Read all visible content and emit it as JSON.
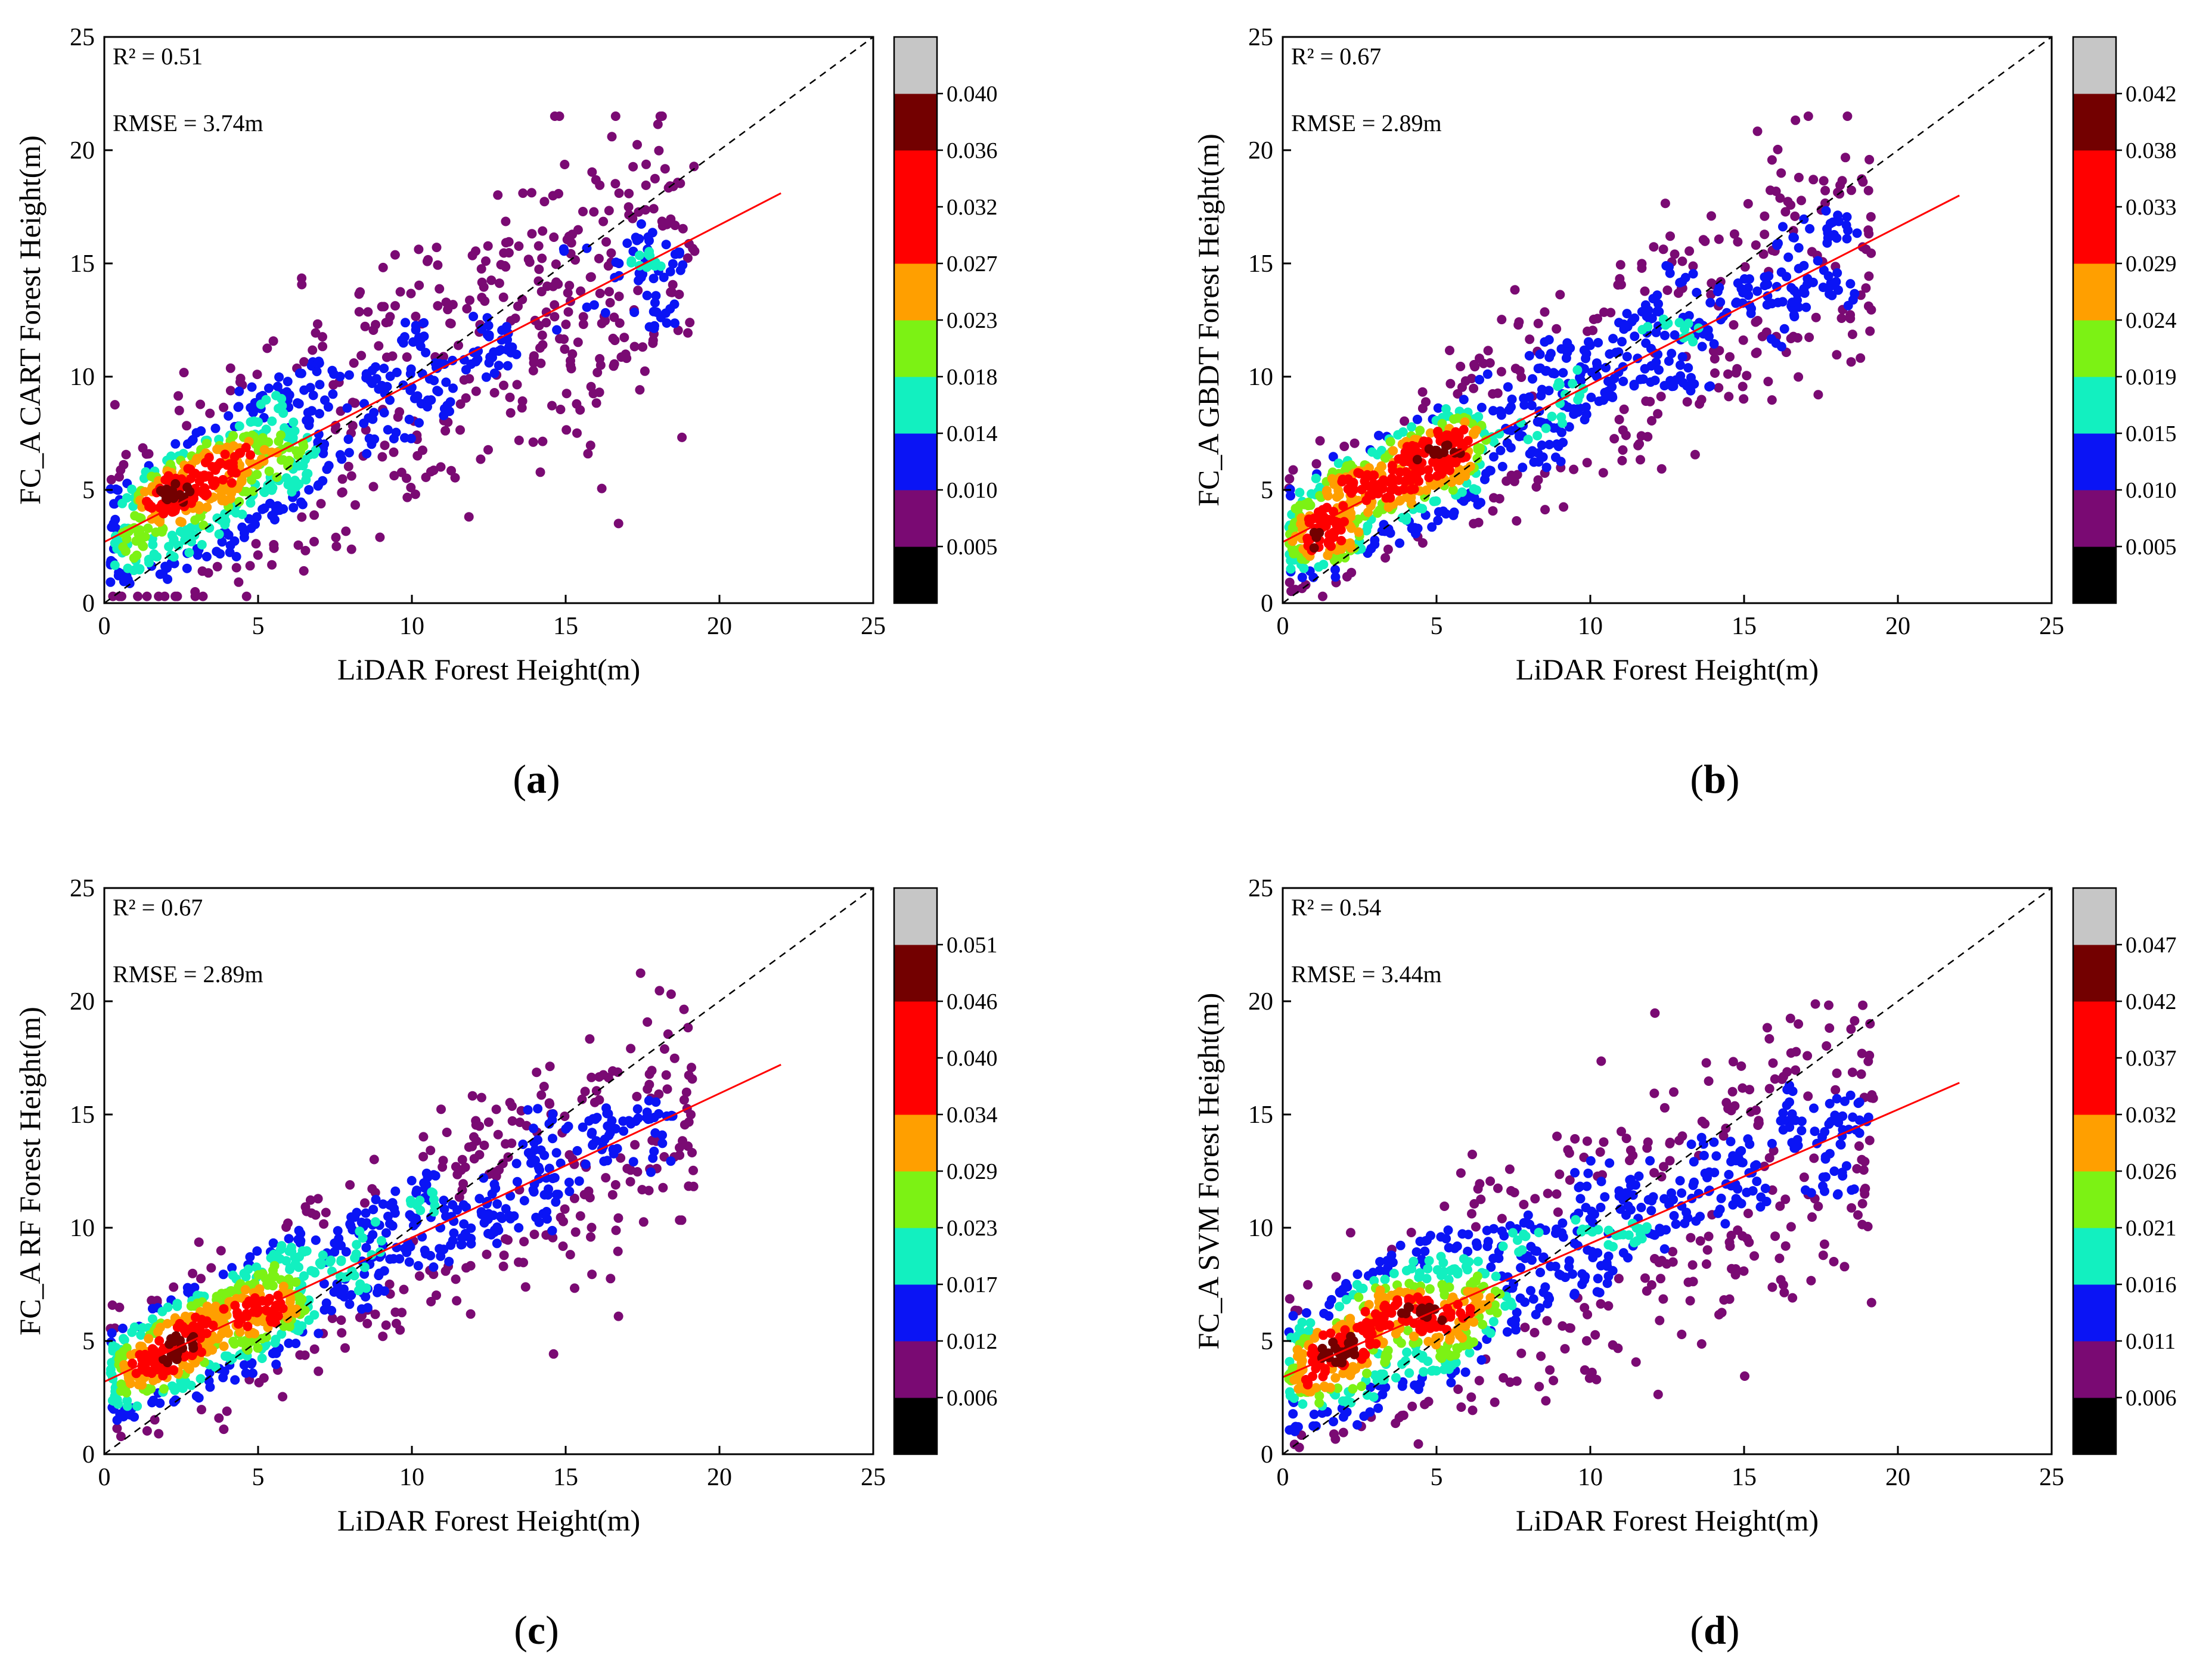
{
  "colors": {
    "bins": [
      "#000000",
      "#7a0a73",
      "#0a14f5",
      "#12f0c0",
      "#7cf214",
      "#ff9f00",
      "#ff0000",
      "#730000",
      "#c6c6c6"
    ],
    "fit_line": "#ff0000",
    "identity_line": "#000000"
  },
  "chart_data": [
    {
      "id": "a",
      "type": "scatter",
      "letter": "a",
      "xlabel": "LiDAR Forest Height(m)",
      "ylabel": "FC_A CART Forest Height(m)",
      "xlim": [
        0,
        25
      ],
      "ylim": [
        0,
        25
      ],
      "xticks": [
        "0",
        "5",
        "10",
        "15",
        "20",
        "25"
      ],
      "yticks": [
        "0",
        "5",
        "10",
        "15",
        "20",
        "25"
      ],
      "r2_text": "R² = 0.51",
      "rmse_text": "RMSE = 3.74m",
      "colorbar_labels": [
        "0.005",
        "0.010",
        "0.014",
        "0.018",
        "0.023",
        "0.027",
        "0.032",
        "0.036",
        "0.040"
      ],
      "fit_line": {
        "x": [
          0,
          22
        ],
        "y": [
          2.7,
          18.1
        ]
      },
      "identity_line": {
        "x": [
          0,
          25
        ],
        "y": [
          0,
          25
        ]
      },
      "points_summary": {
        "n": 1100,
        "seed": 11,
        "intercept": 2.7,
        "slope": 0.7,
        "noise_sd": 3.0,
        "x_skew": 1.25
      }
    },
    {
      "id": "b",
      "type": "scatter",
      "letter": "b",
      "xlabel": "LiDAR Forest Height(m)",
      "ylabel": "FC_A GBDT Forest Height(m)",
      "xlim": [
        0,
        25
      ],
      "ylim": [
        0,
        25
      ],
      "xticks": [
        "0",
        "5",
        "10",
        "15",
        "20",
        "25"
      ],
      "yticks": [
        "0",
        "5",
        "10",
        "15",
        "20",
        "25"
      ],
      "r2_text": "R² = 0.67",
      "rmse_text": "RMSE = 2.89m",
      "colorbar_labels": [
        "0.005",
        "0.010",
        "0.015",
        "0.019",
        "0.024",
        "0.029",
        "0.033",
        "0.038",
        "0.042"
      ],
      "fit_line": {
        "x": [
          0,
          22
        ],
        "y": [
          2.7,
          18.0
        ]
      },
      "identity_line": {
        "x": [
          0,
          25
        ],
        "y": [
          0,
          25
        ]
      },
      "points_summary": {
        "n": 1100,
        "seed": 23,
        "intercept": 2.7,
        "slope": 0.7,
        "noise_sd": 2.2,
        "x_skew": 1.25
      }
    },
    {
      "id": "c",
      "type": "scatter",
      "letter": "c",
      "xlabel": "LiDAR Forest Height(m)",
      "ylabel": "FC_A RF Forest Height(m)",
      "xlim": [
        0,
        25
      ],
      "ylim": [
        0,
        25
      ],
      "xticks": [
        "0",
        "5",
        "10",
        "15",
        "20",
        "25"
      ],
      "yticks": [
        "0",
        "5",
        "10",
        "15",
        "20",
        "25"
      ],
      "r2_text": "R² = 0.67",
      "rmse_text": "RMSE = 2.89m",
      "colorbar_labels": [
        "0.006",
        "0.012",
        "0.017",
        "0.023",
        "0.029",
        "0.034",
        "0.040",
        "0.046",
        "0.051"
      ],
      "fit_line": {
        "x": [
          0,
          22
        ],
        "y": [
          3.2,
          17.2
        ]
      },
      "identity_line": {
        "x": [
          0,
          25
        ],
        "y": [
          0,
          25
        ]
      },
      "points_summary": {
        "n": 1100,
        "seed": 37,
        "intercept": 3.2,
        "slope": 0.64,
        "noise_sd": 2.1,
        "x_skew": 1.25
      }
    },
    {
      "id": "d",
      "type": "scatter",
      "letter": "d",
      "xlabel": "LiDAR Forest Height(m)",
      "ylabel": "FC_A SVM Forest Height(m)",
      "xlim": [
        0,
        25
      ],
      "ylim": [
        0,
        25
      ],
      "xticks": [
        "0",
        "5",
        "10",
        "15",
        "20",
        "25"
      ],
      "yticks": [
        "0",
        "5",
        "10",
        "15",
        "20",
        "25"
      ],
      "r2_text": "R² = 0.54",
      "rmse_text": "RMSE = 3.44m",
      "colorbar_labels": [
        "0.006",
        "0.011",
        "0.016",
        "0.021",
        "0.026",
        "0.032",
        "0.037",
        "0.042",
        "0.047"
      ],
      "fit_line": {
        "x": [
          0,
          22
        ],
        "y": [
          3.4,
          16.4
        ]
      },
      "identity_line": {
        "x": [
          0,
          25
        ],
        "y": [
          0,
          25
        ]
      },
      "points_summary": {
        "n": 1100,
        "seed": 53,
        "intercept": 3.4,
        "slope": 0.59,
        "noise_sd": 2.7,
        "x_skew": 1.25
      }
    }
  ]
}
